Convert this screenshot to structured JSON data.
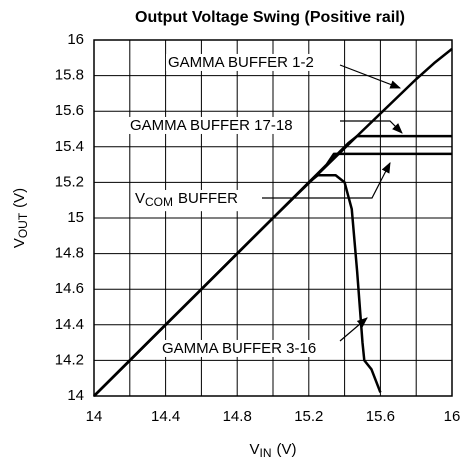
{
  "chart_data": {
    "type": "line",
    "title": "Output Voltage Swing (Positive rail)",
    "xlabel": {
      "symbol": "V",
      "subscript": "IN",
      "unit": "(V)"
    },
    "ylabel": {
      "symbol": "V",
      "subscript": "OUT",
      "unit": "(V)"
    },
    "xlim": [
      14,
      16
    ],
    "ylim": [
      14,
      16
    ],
    "xticks": [
      14,
      14.4,
      14.8,
      15.2,
      15.6,
      16
    ],
    "xminorticks": [
      14.2,
      14.6,
      15,
      15.4,
      15.8
    ],
    "yticks": [
      14,
      14.2,
      14.4,
      14.6,
      14.8,
      15,
      15.2,
      15.4,
      15.6,
      15.8,
      16
    ],
    "grid": true,
    "series": [
      {
        "name": "GAMMA BUFFER 1-2",
        "color": "#000000",
        "x": [
          14,
          14.5,
          15,
          15.5,
          15.8,
          15.9,
          15.95,
          16
        ],
        "values": [
          14,
          14.5,
          15,
          15.49,
          15.78,
          15.87,
          15.91,
          15.95
        ]
      },
      {
        "name": "GAMMA BUFFER 17-18",
        "color": "#000000",
        "x": [
          14,
          15.35,
          15.42,
          15.47,
          16
        ],
        "values": [
          14,
          15.35,
          15.42,
          15.46,
          15.46
        ]
      },
      {
        "name": {
          "symbol": "V",
          "subscript": "COM",
          "text": "BUFFER"
        },
        "color": "#000000",
        "x": [
          14,
          15.3,
          15.34,
          16
        ],
        "values": [
          14,
          15.3,
          15.36,
          15.36
        ]
      },
      {
        "name": "GAMMA BUFFER 3-16",
        "color": "#000000",
        "x": [
          14,
          15.2,
          15.25,
          15.35,
          15.4,
          15.44,
          15.47,
          15.5,
          15.51,
          15.55,
          15.6
        ],
        "values": [
          14,
          15.2,
          15.24,
          15.24,
          15.2,
          15.05,
          14.7,
          14.3,
          14.2,
          14.15,
          14.02
        ]
      }
    ]
  }
}
